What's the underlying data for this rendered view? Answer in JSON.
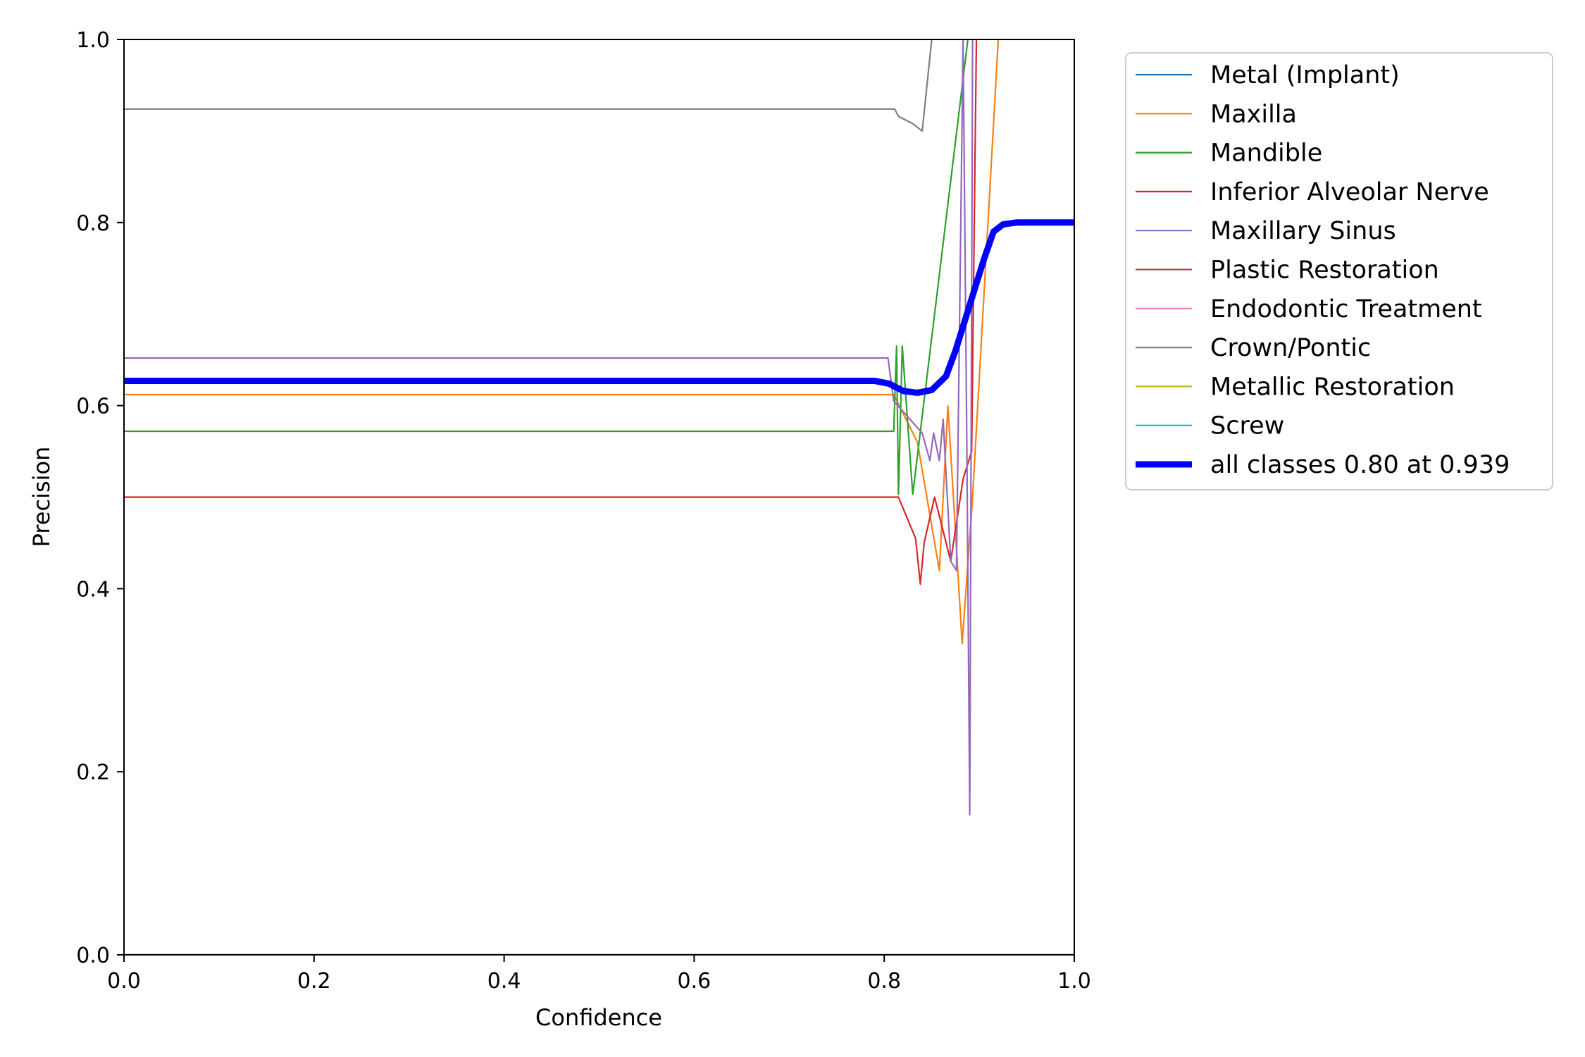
{
  "chart_data": {
    "type": "line",
    "xlabel": "Confidence",
    "ylabel": "Precision",
    "xlim": [
      0.0,
      1.0
    ],
    "ylim": [
      0.0,
      1.0
    ],
    "xticks": [
      "0.0",
      "0.2",
      "0.4",
      "0.6",
      "0.8",
      "1.0"
    ],
    "yticks": [
      "0.0",
      "0.2",
      "0.4",
      "0.6",
      "0.8",
      "1.0"
    ],
    "grid": false,
    "legend_position": "outside-top-right",
    "series": [
      {
        "name": "Metal (Implant)",
        "color": "#1f77b4",
        "points": [
          [
            0.0,
            0.0
          ],
          [
            1.0,
            0.0
          ]
        ]
      },
      {
        "name": "Maxilla",
        "color": "#ff7f0e",
        "points": [
          [
            0.0,
            0.612
          ],
          [
            0.81,
            0.612
          ],
          [
            0.835,
            0.56
          ],
          [
            0.858,
            0.42
          ],
          [
            0.867,
            0.6
          ],
          [
            0.878,
            0.41
          ],
          [
            0.882,
            0.34
          ],
          [
            0.893,
            0.5
          ],
          [
            0.92,
            1.0
          ]
        ]
      },
      {
        "name": "Mandible",
        "color": "#2ca02c",
        "points": [
          [
            0.0,
            0.572
          ],
          [
            0.81,
            0.572
          ],
          [
            0.813,
            0.665
          ],
          [
            0.815,
            0.503
          ],
          [
            0.819,
            0.665
          ],
          [
            0.83,
            0.503
          ],
          [
            0.888,
            1.0
          ]
        ]
      },
      {
        "name": "Inferior Alveolar Nerve",
        "color": "#d62728",
        "points": [
          [
            0.0,
            0.5
          ],
          [
            0.815,
            0.5
          ],
          [
            0.833,
            0.455
          ],
          [
            0.838,
            0.405
          ],
          [
            0.842,
            0.45
          ],
          [
            0.853,
            0.5
          ],
          [
            0.87,
            0.43
          ],
          [
            0.883,
            0.52
          ],
          [
            0.892,
            0.55
          ],
          [
            0.897,
            1.0
          ]
        ]
      },
      {
        "name": "Maxillary Sinus",
        "color": "#9467bd",
        "points": [
          [
            0.0,
            0.652
          ],
          [
            0.804,
            0.652
          ],
          [
            0.81,
            0.605
          ],
          [
            0.84,
            0.57
          ],
          [
            0.848,
            0.54
          ],
          [
            0.852,
            0.57
          ],
          [
            0.858,
            0.54
          ],
          [
            0.862,
            0.585
          ],
          [
            0.87,
            0.43
          ],
          [
            0.876,
            0.42
          ],
          [
            0.883,
            1.0
          ],
          [
            0.887,
            0.55
          ],
          [
            0.89,
            0.153
          ],
          [
            0.893,
            1.0
          ]
        ]
      },
      {
        "name": "Plastic Restoration",
        "color": "#8c564b",
        "points": [
          [
            0.0,
            0.0
          ],
          [
            1.0,
            0.0
          ]
        ]
      },
      {
        "name": "Endodontic Treatment",
        "color": "#e377c2",
        "points": [
          [
            0.0,
            0.0
          ],
          [
            1.0,
            0.0
          ]
        ]
      },
      {
        "name": "Crown/Pontic",
        "color": "#7f7f7f",
        "points": [
          [
            0.0,
            0.924
          ],
          [
            0.811,
            0.924
          ],
          [
            0.815,
            0.916
          ],
          [
            0.83,
            0.908
          ],
          [
            0.84,
            0.9
          ],
          [
            0.85,
            1.0
          ]
        ]
      },
      {
        "name": "Metallic Restoration",
        "color": "#bcbd22",
        "points": [
          [
            0.0,
            0.0
          ],
          [
            1.0,
            0.0
          ]
        ]
      },
      {
        "name": "Screw",
        "color": "#17becf",
        "points": [
          [
            0.0,
            0.0
          ],
          [
            1.0,
            0.0
          ]
        ]
      },
      {
        "name": "all classes 0.80 at 0.939",
        "color": "#0000ff",
        "thick": true,
        "points": [
          [
            0.0,
            0.627
          ],
          [
            0.79,
            0.627
          ],
          [
            0.805,
            0.624
          ],
          [
            0.82,
            0.616
          ],
          [
            0.835,
            0.614
          ],
          [
            0.85,
            0.617
          ],
          [
            0.865,
            0.632
          ],
          [
            0.875,
            0.66
          ],
          [
            0.89,
            0.71
          ],
          [
            0.905,
            0.76
          ],
          [
            0.915,
            0.79
          ],
          [
            0.925,
            0.798
          ],
          [
            0.939,
            0.8
          ],
          [
            1.0,
            0.8
          ]
        ]
      }
    ]
  }
}
